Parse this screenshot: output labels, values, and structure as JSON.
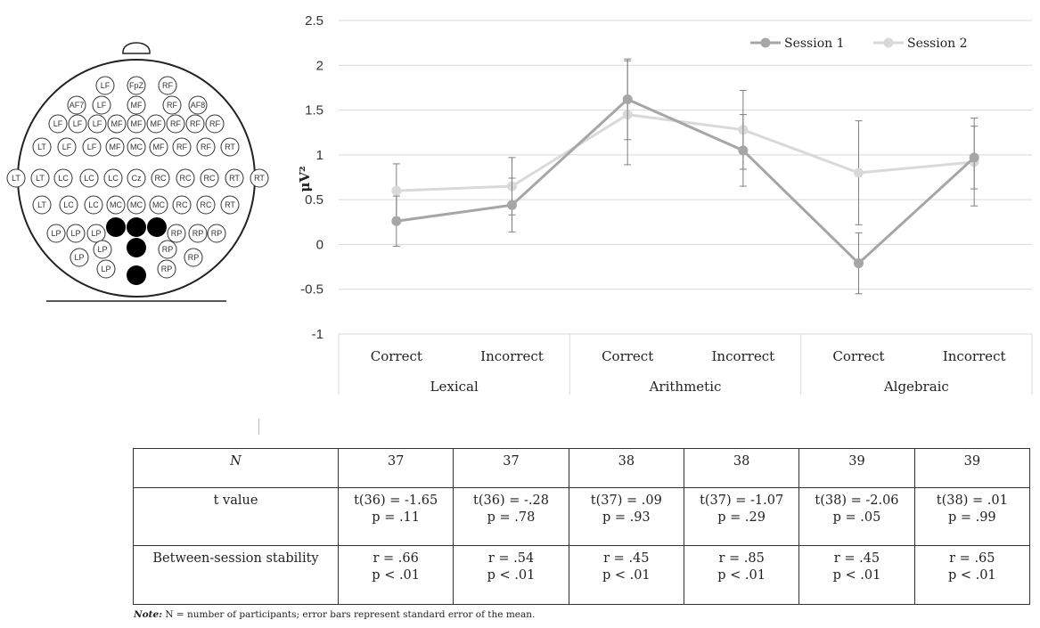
{
  "chart_data": {
    "type": "line",
    "ylabel": "μV²",
    "ylim": [
      -1,
      2.5
    ],
    "yticks": [
      "2.5",
      "2",
      "1.5",
      "1",
      "0.5",
      "0",
      "-0.5",
      "-1"
    ],
    "grid": true,
    "legend_position": "top-right",
    "categories": [
      "Correct",
      "Incorrect",
      "Correct",
      "Incorrect",
      "Correct",
      "Incorrect"
    ],
    "groups": [
      "Lexical",
      "Arithmetic",
      "Algebraic"
    ],
    "series": [
      {
        "name": "Session 1",
        "color": "#a6a6a6",
        "values": [
          0.26,
          0.44,
          1.62,
          1.05,
          -0.21,
          0.97
        ],
        "error_low": [
          -0.02,
          0.14,
          1.17,
          0.65,
          -0.55,
          0.62
        ],
        "error_high": [
          0.54,
          0.74,
          2.07,
          1.45,
          0.13,
          1.32
        ]
      },
      {
        "name": "Session 2",
        "color": "#d9d9d9",
        "values": [
          0.6,
          0.65,
          1.45,
          1.28,
          0.8,
          0.92
        ],
        "error_low": [
          0.3,
          0.33,
          0.89,
          0.84,
          0.22,
          0.43
        ],
        "error_high": [
          0.9,
          0.97,
          2.05,
          1.72,
          1.38,
          1.41
        ]
      }
    ]
  },
  "head_map": {
    "electrodes": [
      "LF",
      "FpZ",
      "RF",
      "AF7",
      "LF",
      "MF",
      "RF",
      "AF8",
      "LF",
      "LF",
      "LF",
      "MF",
      "MF",
      "MF",
      "RF",
      "RF",
      "RF",
      "LT",
      "LF",
      "LF",
      "MF",
      "MC",
      "MF",
      "RF",
      "RF",
      "RT",
      "LT",
      "LT",
      "LC",
      "LC",
      "LC",
      "Cz",
      "RC",
      "RC",
      "RC",
      "RT",
      "RT",
      "LT",
      "LC",
      "LC",
      "MC",
      "MC",
      "MC",
      "RC",
      "RC",
      "RT",
      "LP",
      "LP",
      "LP",
      "RP",
      "RP",
      "RP",
      "LP",
      "RP",
      "LP",
      "RP",
      "LP",
      "RP"
    ],
    "highlighted_count": 5
  },
  "table": {
    "rows": [
      {
        "label": "N",
        "cells": [
          [
            "37",
            ""
          ],
          [
            "37",
            ""
          ],
          [
            "38",
            ""
          ],
          [
            "38",
            ""
          ],
          [
            "39",
            ""
          ],
          [
            "39",
            ""
          ]
        ]
      },
      {
        "label": "t value",
        "cells": [
          [
            "t(36) = -1.65",
            "p = .11"
          ],
          [
            "t(36) = -.28",
            "p = .78"
          ],
          [
            "t(37) = .09",
            "p = .93"
          ],
          [
            "t(37) = -1.07",
            "p = .29"
          ],
          [
            "t(38) = -2.06",
            "p = .05"
          ],
          [
            "t(38) = .01",
            "p = .99"
          ]
        ]
      },
      {
        "label": "Between-session stability",
        "cells": [
          [
            "r = .66",
            "p < .01"
          ],
          [
            "r = .54",
            "p < .01"
          ],
          [
            "r = .45",
            "p < .01"
          ],
          [
            "r = .85",
            "p < .01"
          ],
          [
            "r = .45",
            "p < .01"
          ],
          [
            "r = .65",
            "p < .01"
          ]
        ]
      }
    ]
  },
  "note": {
    "prefix": "Note:",
    "text": " N = number of participants; error bars represent standard error of the mean."
  }
}
